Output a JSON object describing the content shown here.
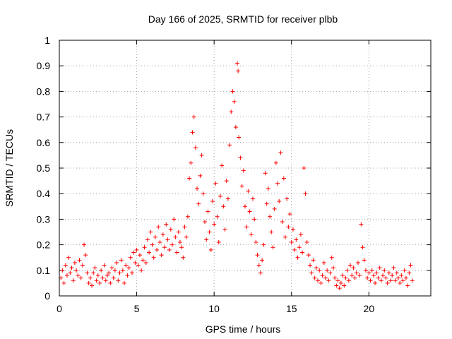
{
  "chart_data": {
    "type": "scatter",
    "title": "Day 166 of 2025, SRMTID for receiver plbb",
    "xlabel": "GPS time / hours",
    "ylabel": "SRMTID / TECUs",
    "xlim": [
      0,
      24
    ],
    "ylim": [
      0,
      1
    ],
    "xticks": [
      0,
      5,
      10,
      15,
      20
    ],
    "xtick_labels": [
      "0",
      "5",
      "10",
      "15",
      "20"
    ],
    "yticks": [
      0,
      0.1,
      0.2,
      0.3,
      0.4,
      0.5,
      0.6,
      0.7,
      0.8,
      0.9,
      1
    ],
    "ytick_labels": [
      "0",
      "0.1",
      "0.2",
      "0.3",
      "0.4",
      "0.5",
      "0.6",
      "0.7",
      "0.8",
      "0.9",
      "1"
    ],
    "grid": true,
    "marker": "+",
    "color": "#ff0000",
    "series": [
      {
        "name": "SRMTID",
        "points": [
          [
            0.1,
            0.07
          ],
          [
            0.2,
            0.1
          ],
          [
            0.3,
            0.05
          ],
          [
            0.4,
            0.12
          ],
          [
            0.5,
            0.08
          ],
          [
            0.6,
            0.15
          ],
          [
            0.7,
            0.09
          ],
          [
            0.8,
            0.11
          ],
          [
            0.9,
            0.06
          ],
          [
            1.0,
            0.13
          ],
          [
            1.1,
            0.1
          ],
          [
            1.2,
            0.08
          ],
          [
            1.3,
            0.14
          ],
          [
            1.4,
            0.07
          ],
          [
            1.5,
            0.12
          ],
          [
            1.6,
            0.2
          ],
          [
            1.7,
            0.16
          ],
          [
            1.8,
            0.09
          ],
          [
            1.9,
            0.05
          ],
          [
            2.0,
            0.07
          ],
          [
            2.1,
            0.04
          ],
          [
            2.2,
            0.09
          ],
          [
            2.3,
            0.11
          ],
          [
            2.4,
            0.06
          ],
          [
            2.5,
            0.08
          ],
          [
            2.6,
            0.05
          ],
          [
            2.7,
            0.1
          ],
          [
            2.8,
            0.07
          ],
          [
            2.9,
            0.12
          ],
          [
            3.0,
            0.06
          ],
          [
            3.1,
            0.08
          ],
          [
            3.2,
            0.09
          ],
          [
            3.3,
            0.05
          ],
          [
            3.4,
            0.11
          ],
          [
            3.5,
            0.07
          ],
          [
            3.6,
            0.1
          ],
          [
            3.7,
            0.13
          ],
          [
            3.8,
            0.06
          ],
          [
            3.9,
            0.09
          ],
          [
            4.0,
            0.14
          ],
          [
            4.1,
            0.1
          ],
          [
            4.2,
            0.05
          ],
          [
            4.3,
            0.12
          ],
          [
            4.4,
            0.08
          ],
          [
            4.5,
            0.11
          ],
          [
            4.6,
            0.15
          ],
          [
            4.7,
            0.09
          ],
          [
            4.8,
            0.17
          ],
          [
            4.9,
            0.13
          ],
          [
            5.0,
            0.18
          ],
          [
            5.1,
            0.12
          ],
          [
            5.2,
            0.16
          ],
          [
            5.3,
            0.1
          ],
          [
            5.4,
            0.14
          ],
          [
            5.5,
            0.19
          ],
          [
            5.6,
            0.13
          ],
          [
            5.7,
            0.22
          ],
          [
            5.8,
            0.17
          ],
          [
            5.9,
            0.25
          ],
          [
            6.0,
            0.2
          ],
          [
            6.1,
            0.15
          ],
          [
            6.2,
            0.23
          ],
          [
            6.3,
            0.18
          ],
          [
            6.4,
            0.27
          ],
          [
            6.5,
            0.21
          ],
          [
            6.6,
            0.16
          ],
          [
            6.7,
            0.24
          ],
          [
            6.8,
            0.19
          ],
          [
            6.9,
            0.28
          ],
          [
            7.0,
            0.22
          ],
          [
            7.1,
            0.18
          ],
          [
            7.2,
            0.26
          ],
          [
            7.3,
            0.2
          ],
          [
            7.4,
            0.3
          ],
          [
            7.5,
            0.23
          ],
          [
            7.6,
            0.17
          ],
          [
            7.7,
            0.25
          ],
          [
            7.8,
            0.21
          ],
          [
            7.9,
            0.19
          ],
          [
            8.0,
            0.15
          ],
          [
            8.1,
            0.27
          ],
          [
            8.2,
            0.23
          ],
          [
            8.3,
            0.31
          ],
          [
            8.4,
            0.46
          ],
          [
            8.5,
            0.52
          ],
          [
            8.6,
            0.64
          ],
          [
            8.7,
            0.7
          ],
          [
            8.8,
            0.58
          ],
          [
            8.9,
            0.42
          ],
          [
            9.0,
            0.36
          ],
          [
            9.1,
            0.47
          ],
          [
            9.2,
            0.55
          ],
          [
            9.3,
            0.4
          ],
          [
            9.4,
            0.29
          ],
          [
            9.5,
            0.22
          ],
          [
            9.6,
            0.33
          ],
          [
            9.7,
            0.25
          ],
          [
            9.8,
            0.18
          ],
          [
            9.9,
            0.37
          ],
          [
            10.0,
            0.28
          ],
          [
            10.1,
            0.44
          ],
          [
            10.2,
            0.31
          ],
          [
            10.3,
            0.21
          ],
          [
            10.4,
            0.39
          ],
          [
            10.5,
            0.51
          ],
          [
            10.6,
            0.35
          ],
          [
            10.7,
            0.26
          ],
          [
            10.8,
            0.45
          ],
          [
            10.9,
            0.38
          ],
          [
            11.0,
            0.59
          ],
          [
            11.1,
            0.72
          ],
          [
            11.2,
            0.8
          ],
          [
            11.3,
            0.76
          ],
          [
            11.4,
            0.66
          ],
          [
            11.5,
            0.91
          ],
          [
            11.55,
            0.88
          ],
          [
            11.6,
            0.62
          ],
          [
            11.7,
            0.54
          ],
          [
            11.8,
            0.43
          ],
          [
            11.9,
            0.49
          ],
          [
            12.0,
            0.35
          ],
          [
            12.1,
            0.27
          ],
          [
            12.2,
            0.41
          ],
          [
            12.3,
            0.33
          ],
          [
            12.4,
            0.24
          ],
          [
            12.5,
            0.38
          ],
          [
            12.6,
            0.3
          ],
          [
            12.7,
            0.21
          ],
          [
            12.8,
            0.16
          ],
          [
            12.9,
            0.12
          ],
          [
            13.0,
            0.09
          ],
          [
            13.1,
            0.14
          ],
          [
            13.2,
            0.2
          ],
          [
            13.3,
            0.48
          ],
          [
            13.4,
            0.36
          ],
          [
            13.5,
            0.42
          ],
          [
            13.6,
            0.31
          ],
          [
            13.7,
            0.25
          ],
          [
            13.8,
            0.19
          ],
          [
            13.9,
            0.34
          ],
          [
            14.0,
            0.52
          ],
          [
            14.1,
            0.44
          ],
          [
            14.2,
            0.37
          ],
          [
            14.3,
            0.56
          ],
          [
            14.4,
            0.29
          ],
          [
            14.5,
            0.46
          ],
          [
            14.6,
            0.23
          ],
          [
            14.7,
            0.38
          ],
          [
            14.8,
            0.27
          ],
          [
            14.9,
            0.32
          ],
          [
            15.0,
            0.21
          ],
          [
            15.1,
            0.26
          ],
          [
            15.2,
            0.18
          ],
          [
            15.3,
            0.22
          ],
          [
            15.4,
            0.15
          ],
          [
            15.5,
            0.19
          ],
          [
            15.6,
            0.24
          ],
          [
            15.7,
            0.17
          ],
          [
            15.8,
            0.5
          ],
          [
            15.9,
            0.4
          ],
          [
            16.0,
            0.21
          ],
          [
            16.1,
            0.16
          ],
          [
            16.2,
            0.12
          ],
          [
            16.3,
            0.09
          ],
          [
            16.4,
            0.14
          ],
          [
            16.5,
            0.07
          ],
          [
            16.6,
            0.11
          ],
          [
            16.7,
            0.06
          ],
          [
            16.8,
            0.1
          ],
          [
            16.9,
            0.05
          ],
          [
            17.0,
            0.08
          ],
          [
            17.1,
            0.13
          ],
          [
            17.2,
            0.07
          ],
          [
            17.3,
            0.1
          ],
          [
            17.4,
            0.06
          ],
          [
            17.5,
            0.09
          ],
          [
            17.6,
            0.15
          ],
          [
            17.7,
            0.11
          ],
          [
            17.8,
            0.07
          ],
          [
            17.9,
            0.04
          ],
          [
            18.0,
            0.06
          ],
          [
            18.1,
            0.03
          ],
          [
            18.2,
            0.05
          ],
          [
            18.3,
            0.08
          ],
          [
            18.4,
            0.04
          ],
          [
            18.5,
            0.07
          ],
          [
            18.6,
            0.1
          ],
          [
            18.7,
            0.06
          ],
          [
            18.8,
            0.12
          ],
          [
            18.9,
            0.08
          ],
          [
            19.0,
            0.11
          ],
          [
            19.1,
            0.07
          ],
          [
            19.2,
            0.09
          ],
          [
            19.3,
            0.13
          ],
          [
            19.4,
            0.08
          ],
          [
            19.5,
            0.28
          ],
          [
            19.6,
            0.19
          ],
          [
            19.7,
            0.14
          ],
          [
            19.8,
            0.1
          ],
          [
            19.9,
            0.07
          ],
          [
            20.0,
            0.09
          ],
          [
            20.1,
            0.06
          ],
          [
            20.2,
            0.1
          ],
          [
            20.3,
            0.08
          ],
          [
            20.4,
            0.05
          ],
          [
            20.5,
            0.09
          ],
          [
            20.6,
            0.07
          ],
          [
            20.7,
            0.11
          ],
          [
            20.8,
            0.06
          ],
          [
            20.9,
            0.08
          ],
          [
            21.0,
            0.1
          ],
          [
            21.1,
            0.07
          ],
          [
            21.2,
            0.05
          ],
          [
            21.3,
            0.09
          ],
          [
            21.4,
            0.06
          ],
          [
            21.5,
            0.08
          ],
          [
            21.6,
            0.11
          ],
          [
            21.7,
            0.06
          ],
          [
            21.8,
            0.09
          ],
          [
            21.9,
            0.07
          ],
          [
            22.0,
            0.05
          ],
          [
            22.1,
            0.08
          ],
          [
            22.2,
            0.06
          ],
          [
            22.3,
            0.1
          ],
          [
            22.4,
            0.07
          ],
          [
            22.5,
            0.04
          ],
          [
            22.6,
            0.09
          ],
          [
            22.7,
            0.12
          ],
          [
            22.8,
            0.06
          ]
        ]
      }
    ]
  }
}
